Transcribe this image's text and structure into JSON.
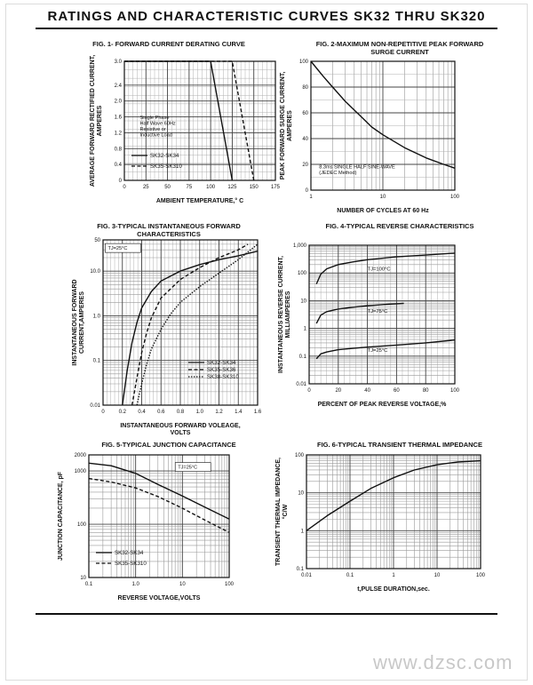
{
  "page": {
    "title": "RATINGS AND CHARACTERISTIC CURVES SK32 THRU SK320",
    "watermark": "www.dzsc.com"
  },
  "chart_data": [
    {
      "id": "fig1",
      "type": "line",
      "title": "FIG. 1- FORWARD CURRENT DERATING CURVE",
      "xlabel": "AMBIENT TEMPERATURE,° C",
      "ylabel": "AVERAGE FORWARD RECTIFIED CURRENT,\nAMPERES",
      "xscale": "linear",
      "yscale": "linear",
      "xlim": [
        0,
        175
      ],
      "ylim": [
        0,
        3.0
      ],
      "xticks": [
        0,
        25,
        50,
        75,
        100,
        125,
        150,
        175
      ],
      "yticks": [
        0,
        0.4,
        0.8,
        1.2,
        1.6,
        2.0,
        2.4,
        3.0
      ],
      "xtick_labels": [
        "0",
        "25",
        "50",
        "75",
        "100",
        "125",
        "150",
        "175"
      ],
      "ytick_labels": [
        "0",
        "0.4",
        "0.8",
        "1.2",
        "1.6",
        "2.0",
        "2.4",
        "3.0"
      ],
      "grid": true,
      "annotations": [
        {
          "text": "Single Phase\nHalf Wave 60Hz\nResistive or\nInductive Load",
          "x": 18,
          "y": 1.55
        }
      ],
      "legend_position": "bottom-left",
      "series": [
        {
          "name": "SK32-SK34",
          "style": "solid",
          "x": [
            0,
            100,
            125
          ],
          "y": [
            3.0,
            3.0,
            0
          ]
        },
        {
          "name": "SK35-SK310",
          "style": "dashed",
          "x": [
            0,
            125,
            150
          ],
          "y": [
            3.0,
            3.0,
            0
          ]
        }
      ]
    },
    {
      "id": "fig2",
      "type": "line",
      "title": "FIG. 2-MAXIMUM NON-REPETITIVE PEAK FORWARD\nSURGE CURRENT",
      "xlabel": "NUMBER OF CYCLES AT 60 Hz",
      "ylabel": "PEAK FORWARD SURGE CURRENT,\nAMPERES",
      "xscale": "log",
      "yscale": "linear",
      "xlim": [
        1,
        100
      ],
      "ylim": [
        0,
        100
      ],
      "xticks": [
        1,
        10,
        100
      ],
      "yticks": [
        0,
        20,
        40,
        60,
        80,
        100
      ],
      "xtick_labels": [
        "1",
        "10",
        "100"
      ],
      "ytick_labels": [
        "0",
        "20",
        "40",
        "60",
        "80",
        "100"
      ],
      "grid": true,
      "annotations": [
        {
          "text": "8.3ms SINGLE HALF SINE-WAVE\n(JEDEC Method)",
          "x": 1.3,
          "y": 17
        }
      ],
      "series": [
        {
          "style": "solid",
          "x": [
            1,
            1.5,
            2,
            3,
            5,
            7,
            10,
            20,
            40,
            70,
            100
          ],
          "y": [
            100,
            88,
            80,
            69,
            57,
            49,
            43,
            33,
            25,
            20,
            17
          ]
        }
      ]
    },
    {
      "id": "fig3",
      "type": "line",
      "title": "FIG. 3-TYPICAL INSTANTANEOUS FORWARD\nCHARACTERISTICS",
      "xlabel": "INSTANTANEOUS FORWARD VOLEAGE,\nVOLTS",
      "ylabel": "INSTANTANEOUS FORWARD\nCURRENT,AMPERES",
      "xscale": "linear",
      "yscale": "log",
      "xlim": [
        0,
        1.6
      ],
      "ylim": [
        0.01,
        50
      ],
      "xticks": [
        0,
        0.2,
        0.4,
        0.6,
        0.8,
        1.0,
        1.2,
        1.4,
        1.6
      ],
      "yticks": [
        0.01,
        0.1,
        1.0,
        10.0,
        50
      ],
      "xtick_labels": [
        "0",
        "0.2",
        "0.4",
        "0.6",
        "0.8",
        "1.0",
        "1.2",
        "1.4",
        "1.6"
      ],
      "ytick_labels": [
        "0.01",
        "0.1",
        "1.0",
        "10.0",
        "50"
      ],
      "grid": true,
      "annotations": [
        {
          "text": "TJ=25°C",
          "x": 0.05,
          "y": 30
        }
      ],
      "legend_position": "bottom-right",
      "series": [
        {
          "name": "SK32-SK34",
          "style": "solid",
          "x": [
            0.2,
            0.25,
            0.3,
            0.35,
            0.4,
            0.5,
            0.6,
            0.8,
            1.0,
            1.2,
            1.4,
            1.6
          ],
          "y": [
            0.01,
            0.06,
            0.25,
            0.7,
            1.5,
            3.5,
            6,
            10,
            14,
            18,
            22,
            28
          ]
        },
        {
          "name": "SK35-SK36",
          "style": "dashed",
          "x": [
            0.3,
            0.35,
            0.4,
            0.45,
            0.5,
            0.6,
            0.8,
            1.0,
            1.2,
            1.4,
            1.5
          ],
          "y": [
            0.01,
            0.04,
            0.15,
            0.4,
            0.9,
            2.5,
            6.5,
            12,
            20,
            30,
            40
          ]
        },
        {
          "name": "SK38-SK310",
          "style": "dotted",
          "x": [
            0.35,
            0.4,
            0.45,
            0.5,
            0.6,
            0.7,
            0.8,
            1.0,
            1.2,
            1.4,
            1.6
          ],
          "y": [
            0.01,
            0.03,
            0.08,
            0.18,
            0.5,
            1.1,
            2.0,
            4.5,
            9,
            18,
            40
          ]
        }
      ]
    },
    {
      "id": "fig4",
      "type": "line",
      "title": "FIG. 4-TYPICAL REVERSE CHARACTERISTICS",
      "xlabel": "PERCENT OF PEAK REVERSE VOLTAGE,%",
      "ylabel": "INSTANTANEOUS REVERSE CURRENT,\nMILLIAMPERES",
      "xscale": "linear",
      "yscale": "log",
      "xlim": [
        0,
        100
      ],
      "ylim": [
        0.01,
        1000
      ],
      "xticks": [
        0,
        20,
        40,
        60,
        80,
        100
      ],
      "yticks": [
        0.01,
        0.1,
        1,
        10,
        100,
        1000
      ],
      "xtick_labels": [
        "0",
        "20",
        "40",
        "60",
        "80",
        "100"
      ],
      "ytick_labels": [
        "0.01",
        "0.1",
        "1",
        "10",
        "100",
        "1,000"
      ],
      "grid": true,
      "series": [
        {
          "name": "TJ=100°C",
          "style": "solid",
          "x": [
            5,
            8,
            12,
            20,
            30,
            40,
            60,
            80,
            100
          ],
          "y": [
            40,
            90,
            140,
            200,
            250,
            300,
            380,
            440,
            520
          ]
        },
        {
          "name": "TJ=75°C",
          "style": "solid",
          "x": [
            5,
            8,
            12,
            20,
            30,
            40,
            55,
            65
          ],
          "y": [
            1.5,
            3,
            4,
            5,
            5.8,
            6.5,
            7.5,
            8
          ]
        },
        {
          "name": "TJ=25°C",
          "style": "solid",
          "x": [
            5,
            8,
            12,
            20,
            30,
            40,
            60,
            80,
            100
          ],
          "y": [
            0.08,
            0.12,
            0.14,
            0.17,
            0.19,
            0.21,
            0.25,
            0.3,
            0.38
          ]
        }
      ]
    },
    {
      "id": "fig5",
      "type": "line",
      "title": "FIG. 5-TYPICAL JUNCTION CAPACITANCE",
      "xlabel": "REVERSE VOLTAGE,VOLTS",
      "ylabel": "JUNCTION CAPACITANCE, pF",
      "xscale": "log",
      "yscale": "log",
      "xlim": [
        0.1,
        100
      ],
      "ylim": [
        10,
        2000
      ],
      "xticks": [
        0.1,
        1,
        10,
        100
      ],
      "yticks": [
        10,
        100,
        1000,
        2000
      ],
      "xtick_labels": [
        "0.1",
        "1.0",
        "10",
        "100"
      ],
      "ytick_labels": [
        "10",
        "100",
        "1000",
        "2000"
      ],
      "grid": true,
      "annotations": [
        {
          "text": "TJ=25°C",
          "x": 8,
          "y": 1100
        }
      ],
      "legend_position": "bottom-left",
      "series": [
        {
          "name": "SK32-SK34",
          "style": "solid",
          "x": [
            0.1,
            0.3,
            1,
            3,
            10,
            30,
            100
          ],
          "y": [
            1400,
            1250,
            900,
            560,
            340,
            210,
            125
          ]
        },
        {
          "name": "SK35-SK310",
          "style": "dashed",
          "x": [
            0.1,
            0.3,
            1,
            3,
            10,
            30,
            100
          ],
          "y": [
            720,
            620,
            480,
            330,
            200,
            120,
            70
          ]
        }
      ]
    },
    {
      "id": "fig6",
      "type": "line",
      "title": "FIG. 6-TYPICAL TRANSIENT THERMAL IMPEDANCE",
      "xlabel": "t,PULSE DURATION,sec.",
      "ylabel": "TRANSIENT THERMAL IMPEDANCE,\n°C/W",
      "xscale": "log",
      "yscale": "log",
      "xlim": [
        0.01,
        100
      ],
      "ylim": [
        0.1,
        100
      ],
      "xticks": [
        0.01,
        0.1,
        1,
        10,
        100
      ],
      "yticks": [
        0.1,
        1,
        10,
        100
      ],
      "xtick_labels": [
        "0.01",
        "0.1",
        "1",
        "10",
        "100"
      ],
      "ytick_labels": [
        "0.1",
        "1",
        "10",
        "100"
      ],
      "grid": true,
      "series": [
        {
          "style": "solid",
          "x": [
            0.01,
            0.03,
            0.1,
            0.3,
            1,
            3,
            10,
            30,
            100
          ],
          "y": [
            1.0,
            2.5,
            6,
            13,
            25,
            40,
            55,
            65,
            70
          ]
        }
      ]
    }
  ]
}
